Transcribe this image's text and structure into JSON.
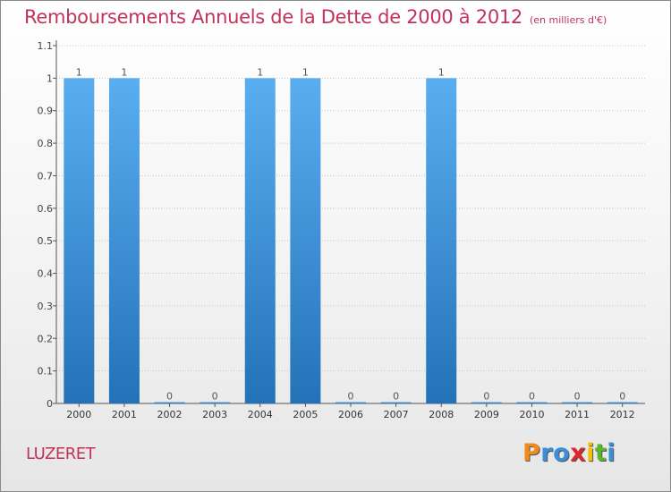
{
  "chart_data": {
    "type": "bar",
    "title": "Remboursements Annuels de la Dette de 2000 à 2012",
    "subtitle": "(en milliers d'€)",
    "categories": [
      "2000",
      "2001",
      "2002",
      "2003",
      "2004",
      "2005",
      "2006",
      "2007",
      "2008",
      "2009",
      "2010",
      "2011",
      "2012"
    ],
    "values": [
      1,
      1,
      0,
      0,
      1,
      1,
      0,
      0,
      1,
      0,
      0,
      0,
      0
    ],
    "data_labels": [
      "1",
      "1",
      "0",
      "0",
      "1",
      "1",
      "0",
      "0",
      "1",
      "0",
      "0",
      "0",
      "0"
    ],
    "ylim": [
      0,
      1.1
    ],
    "yticks": [
      "0",
      "0.1",
      "0.2",
      "0.3",
      "0.4",
      "0.5",
      "0.6",
      "0.7",
      "0.8",
      "0.9",
      "1",
      "1.1"
    ],
    "grid": true,
    "bar_color": "#3d8fd6",
    "bar_color_light": "#5aaef0",
    "bar_color_dark": "#2372b8"
  },
  "place_name": "LUZERET",
  "logo": {
    "text": "Proxiti",
    "letters": [
      {
        "ch": "P",
        "color": "#f08a1c"
      },
      {
        "ch": "r",
        "color": "#3a8fd8"
      },
      {
        "ch": "o",
        "color": "#3a8fd8"
      },
      {
        "ch": "x",
        "color": "#e0262c"
      },
      {
        "ch": "i",
        "color": "#f2c200"
      },
      {
        "ch": "t",
        "color": "#5cb531"
      },
      {
        "ch": "i",
        "color": "#3a8fd8"
      }
    ]
  },
  "colors": {
    "title": "#c0335b",
    "axis": "#555555",
    "grid": "#c8c8c8"
  }
}
